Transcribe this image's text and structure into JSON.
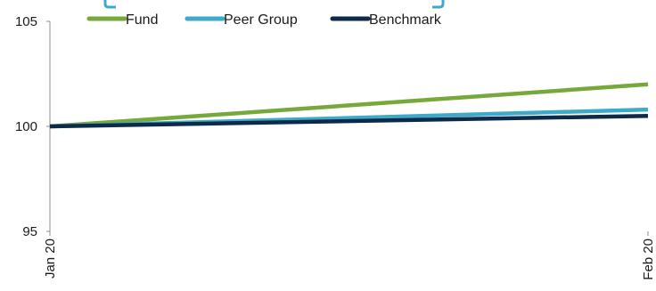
{
  "chart_data": {
    "type": "line",
    "x": [
      "Jan 20",
      "Feb 20"
    ],
    "series": [
      {
        "name": "Fund",
        "values": [
          100,
          102
        ],
        "color": "#76a83b"
      },
      {
        "name": "Peer Group",
        "values": [
          100,
          100.8
        ],
        "color": "#3ea9c8"
      },
      {
        "name": "Benchmark",
        "values": [
          100,
          100.5
        ],
        "color": "#0e2a4b"
      }
    ],
    "yticks": [
      105,
      100,
      95
    ],
    "ylim": [
      95,
      105
    ],
    "title": "",
    "xlabel": "",
    "ylabel": "",
    "grid": false,
    "legend_position": "top"
  }
}
